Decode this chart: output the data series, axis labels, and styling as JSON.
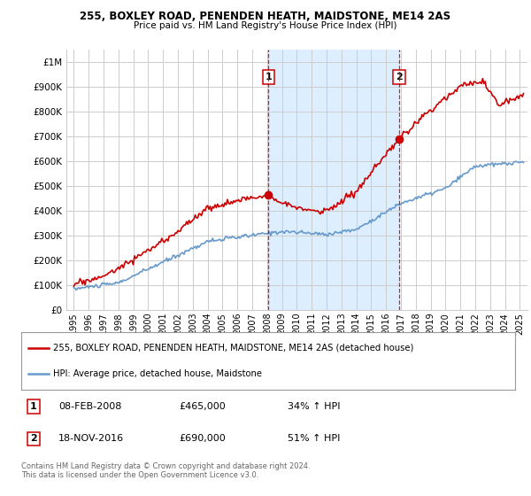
{
  "title": "255, BOXLEY ROAD, PENENDEN HEATH, MAIDSTONE, ME14 2AS",
  "subtitle": "Price paid vs. HM Land Registry's House Price Index (HPI)",
  "legend_line1": "255, BOXLEY ROAD, PENENDEN HEATH, MAIDSTONE, ME14 2AS (detached house)",
  "legend_line2": "HPI: Average price, detached house, Maidstone",
  "footnote": "Contains HM Land Registry data © Crown copyright and database right 2024.\nThis data is licensed under the Open Government Licence v3.0.",
  "event1_date": "08-FEB-2008",
  "event1_price": "£465,000",
  "event1_hpi": "34% ↑ HPI",
  "event1_x": 2008.1,
  "event1_y": 465000,
  "event2_date": "18-NOV-2016",
  "event2_price": "£690,000",
  "event2_hpi": "51% ↑ HPI",
  "event2_x": 2016.88,
  "event2_y": 690000,
  "red_color": "#cc0000",
  "blue_color": "#6699cc",
  "shaded_color": "#ddeeff",
  "grid_color": "#cccccc",
  "ylim": [
    0,
    1050000
  ],
  "yticks": [
    0,
    100000,
    200000,
    300000,
    400000,
    500000,
    600000,
    700000,
    800000,
    900000,
    1000000
  ],
  "ytick_labels": [
    "£0",
    "£100K",
    "£200K",
    "£300K",
    "£400K",
    "£500K",
    "£600K",
    "£700K",
    "£800K",
    "£900K",
    "£1M"
  ],
  "xlim": [
    1994.5,
    2025.5
  ],
  "xticks": [
    1995,
    1996,
    1997,
    1998,
    1999,
    2000,
    2001,
    2002,
    2003,
    2004,
    2005,
    2006,
    2007,
    2008,
    2009,
    2010,
    2011,
    2012,
    2013,
    2014,
    2015,
    2016,
    2017,
    2018,
    2019,
    2020,
    2021,
    2022,
    2023,
    2024,
    2025
  ]
}
